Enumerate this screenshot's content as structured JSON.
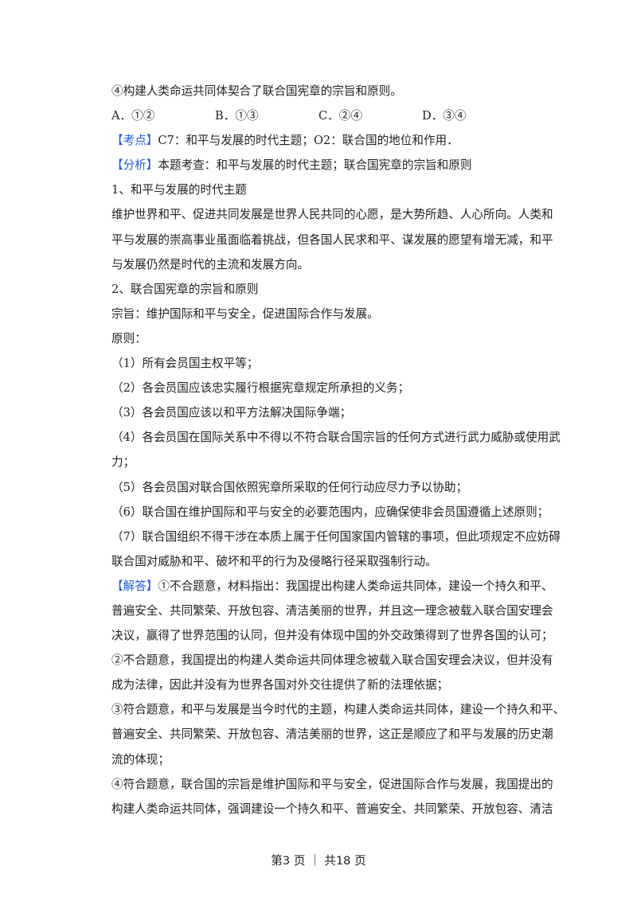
{
  "question_tail": "④构建人类命运共同体契合了联合国宪章的宗旨和原则。",
  "options": [
    "A．①②",
    "B．①③",
    "C．②④",
    "D．③④"
  ],
  "kaodian": {
    "label": "【考点】",
    "text": "C7：和平与发展的时代主题；O2：联合国的地位和作用．"
  },
  "fenxi": {
    "label": "【分析】",
    "text": "本题考查：和平与发展的时代主题；联合国宪章的宗旨和原则"
  },
  "analysis_lines": [
    {
      "text": "1、和平与发展的时代主题",
      "full": false
    },
    {
      "text": "维护世界和平、促进共同发展是世界人民共同的心愿，是大势所趋、人心所向。人类和",
      "full": true
    },
    {
      "text": "平与发展的崇高事业虽面临着挑战，但各国人民求和平、谋发展的愿望有增无减，和平",
      "full": true
    },
    {
      "text": "与发展仍然是时代的主流和发展方向。",
      "full": false
    },
    {
      "text": "2、联合国宪章的宗旨和原则",
      "full": false
    },
    {
      "text": "宗旨：维护国际和平与安全，促进国际合作与发展。",
      "full": false
    },
    {
      "text": "原则：",
      "full": false
    },
    {
      "text": "（1）所有会员国主权平等；",
      "full": false
    },
    {
      "text": "（2）各会员国应该忠实履行根据宪章规定所承担的义务；",
      "full": false
    },
    {
      "text": "（3）各会员国应该以和平方法解决国际争端；",
      "full": false
    },
    {
      "text": "（4）各会员国在国际关系中不得以不符合联合国宗旨的任何方式进行武力威胁或使用武",
      "full": true
    },
    {
      "text": "力；",
      "full": false
    },
    {
      "text": "（5）各会员国对联合国依照宪章所采取的任何行动应尽力予以协助；",
      "full": false
    },
    {
      "text": "（6）联合国在维护国际和平与安全的必要范围内，应确保使非会员国遵循上述原则；",
      "full": false
    },
    {
      "text": "（7）联合国组织不得干涉在本质上属于任何国家国内管辖的事项，但此项规定不应妨碍",
      "full": true
    },
    {
      "text": "联合国对威胁和平、破坏和平的行为及侵略行径采取强制行动。",
      "full": false
    }
  ],
  "jieda": {
    "label": "【解答】",
    "text": "①不合题意，材料指出：我国提出构建人类命运共同体，建设一个持久和平、"
  },
  "answer_lines": [
    {
      "text": "普遍安全、共同繁荣、开放包容、清洁美丽的世界，并且这一理念被载入联合国安理会",
      "full": true
    },
    {
      "text": "决议，赢得了世界范围的认同，但并没有体现中国的外交政策得到了世界各国的认可；",
      "full": true
    },
    {
      "text": "②不合题意，我国提出的构建人类命运共同体理念被载入联合国安理会决议，但并没有",
      "full": true
    },
    {
      "text": "成为法律，因此并没有为世界各国对外交往提供了新的法理依据；",
      "full": false
    },
    {
      "text": "③符合题意，和平与发展是当今时代的主题，构建人类命运共同体，建设一个持久和平、",
      "full": true
    },
    {
      "text": "普遍安全、共同繁荣、开放包容、清洁美丽的世界，这正是顺应了和平与发展的历史潮",
      "full": true
    },
    {
      "text": "流的体现；",
      "full": false
    },
    {
      "text": "④符合题意，联合国的宗旨是维护国际和平与安全，促进国际合作与发展，我国提出的",
      "full": true
    },
    {
      "text": "构建人类命运共同体，强调建设一个持久和平、普遍安全、共同繁荣、开放包容、清洁",
      "full": true
    }
  ],
  "footer": "第3 页 ｜ 共18 页",
  "colors": {
    "label": "#1e5bd8",
    "text": "#222222"
  }
}
